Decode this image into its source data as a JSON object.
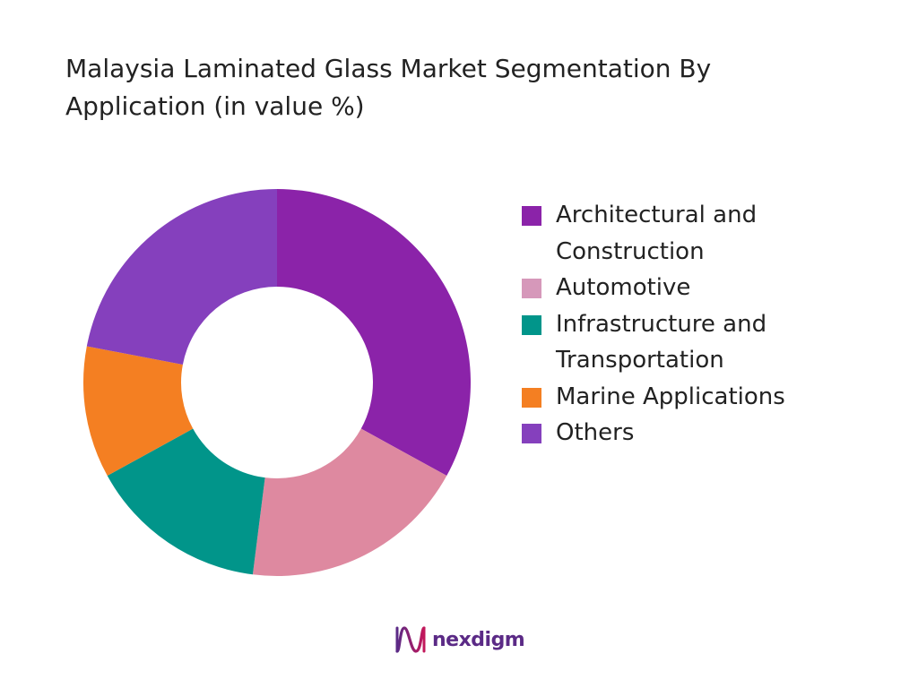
{
  "chart_data": {
    "type": "pie",
    "title": "Malaysia Laminated Glass Market Segmentation By Application (in value %)",
    "donut": true,
    "categories": [
      "Architectural and Construction",
      "Automotive",
      "Infrastructure and Transportation",
      "Marine Applications",
      "Others"
    ],
    "values": [
      33,
      19,
      15,
      11,
      22
    ],
    "colors": [
      "#8b23a9",
      "#de89a0",
      "#01958a",
      "#f47f22",
      "#8540bd"
    ],
    "legend_swatch_colors": [
      "#8b23a9",
      "#d698ba",
      "#01958a",
      "#f47f22",
      "#8540bd"
    ],
    "legend_position": "right"
  },
  "logo": {
    "text": "nexdigm",
    "color": "#5b2a86",
    "icon": "nexdigm-logo-icon"
  }
}
